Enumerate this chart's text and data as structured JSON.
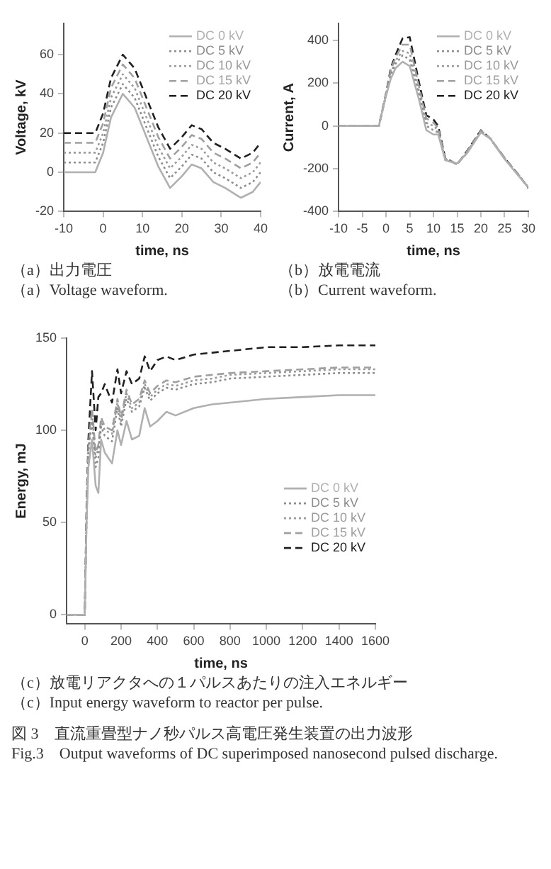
{
  "chart_data": [
    {
      "type": "line",
      "xlabel": "time, ns",
      "ylabel": "Voltage, kV",
      "xlim": [
        -10,
        40
      ],
      "xticks": [
        -10,
        0,
        10,
        20,
        30,
        40
      ],
      "ylim": [
        -20,
        76
      ],
      "yticks": [
        -20,
        0,
        20,
        40,
        60
      ],
      "grid": false,
      "legend": "top right",
      "marker": "none",
      "x": [
        -10,
        -2,
        0,
        2,
        5,
        8,
        11,
        14,
        17,
        20,
        22.5,
        25,
        28,
        31,
        35,
        38,
        40
      ],
      "series": [
        {
          "name": "DC 0 kV",
          "color": "#b0b0b0",
          "line_style": "solid",
          "values": [
            0,
            0,
            10,
            28,
            40,
            33,
            18,
            3,
            -8,
            -2,
            4,
            2,
            -5,
            -8,
            -13,
            -10,
            -5
          ]
        },
        {
          "name": "DC 5 kV",
          "color": "#8c8c8c",
          "line_style": "dotted",
          "values": [
            5,
            5,
            15,
            33,
            45,
            38,
            23,
            8,
            -3,
            3,
            9,
            7,
            0,
            -3,
            -8,
            -5,
            0
          ]
        },
        {
          "name": "DC 10 kV",
          "color": "#9a9a9a",
          "line_style": "dotted",
          "values": [
            10,
            10,
            20,
            38,
            50,
            43,
            28,
            13,
            2,
            8,
            14,
            12,
            5,
            2,
            -3,
            0,
            5
          ]
        },
        {
          "name": "DC 15 kV",
          "color": "#a0a0a0",
          "line_style": "dashed",
          "values": [
            15,
            15,
            25,
            43,
            55,
            48,
            33,
            18,
            7,
            13,
            19,
            17,
            10,
            7,
            2,
            5,
            10
          ]
        },
        {
          "name": "DC 20 kV",
          "color": "#202020",
          "line_style": "dashed",
          "values": [
            20,
            20,
            30,
            48,
            60,
            53,
            38,
            23,
            12,
            18,
            24,
            22,
            15,
            12,
            7,
            10,
            15
          ]
        }
      ],
      "annotations": [
        "（a）出力電圧",
        "（a）Voltage waveform."
      ]
    },
    {
      "type": "line",
      "xlabel": "time, ns",
      "ylabel": "Current, A",
      "xlim": [
        -10,
        30
      ],
      "xticks": [
        -10,
        -5,
        0,
        5,
        10,
        15,
        20,
        25,
        30
      ],
      "ylim": [
        -400,
        480
      ],
      "yticks": [
        -400,
        -200,
        0,
        200,
        400
      ],
      "grid": false,
      "legend": "top right",
      "marker": "none",
      "x": [
        -10,
        -1.5,
        0,
        1,
        2,
        3.5,
        5,
        7,
        8.5,
        10,
        11,
        12.5,
        15,
        17,
        20,
        22,
        25,
        28,
        30
      ],
      "series": [
        {
          "name": "DC 0 kV",
          "color": "#b0b0b0",
          "line_style": "solid",
          "values": [
            0,
            0,
            140,
            220,
            270,
            300,
            280,
            120,
            -20,
            -40,
            -40,
            -160,
            -175,
            -130,
            -30,
            -60,
            -155,
            -235,
            -285
          ]
        },
        {
          "name": "DC 5 kV",
          "color": "#8c8c8c",
          "line_style": "dotted",
          "values": [
            0,
            0,
            145,
            235,
            290,
            330,
            310,
            140,
            0,
            -20,
            -30,
            -160,
            -178,
            -128,
            -28,
            -60,
            -153,
            -233,
            -287
          ]
        },
        {
          "name": "DC 10 kV",
          "color": "#9a9a9a",
          "line_style": "dotted",
          "values": [
            0,
            0,
            145,
            245,
            305,
            350,
            340,
            160,
            15,
            0,
            -20,
            -155,
            -178,
            -125,
            -25,
            -58,
            -152,
            -232,
            -288
          ]
        },
        {
          "name": "DC 15 kV",
          "color": "#a0a0a0",
          "line_style": "dashed",
          "values": [
            0,
            0,
            148,
            260,
            320,
            380,
            380,
            180,
            35,
            15,
            -10,
            -152,
            -180,
            -122,
            -22,
            -58,
            -150,
            -230,
            -289
          ]
        },
        {
          "name": "DC 20 kV",
          "color": "#202020",
          "line_style": "dashed",
          "values": [
            0,
            0,
            150,
            270,
            330,
            410,
            415,
            200,
            50,
            30,
            0,
            -150,
            -180,
            -120,
            -20,
            -60,
            -150,
            -230,
            -290
          ]
        }
      ],
      "annotations": [
        "（b）放電電流",
        "（b）Current waveform."
      ]
    },
    {
      "type": "line",
      "xlabel": "time, ns",
      "ylabel": "Energy, mJ",
      "xlim": [
        -100,
        1600
      ],
      "xticks": [
        0,
        200,
        400,
        600,
        800,
        1000,
        1200,
        1400,
        1600
      ],
      "ylim": [
        -5,
        150
      ],
      "yticks": [
        0,
        50,
        100,
        150
      ],
      "grid": false,
      "legend": "right",
      "marker": "none",
      "x": [
        -100,
        0,
        10,
        20,
        40,
        60,
        75,
        90,
        110,
        150,
        180,
        200,
        230,
        260,
        300,
        330,
        360,
        400,
        450,
        500,
        600,
        700,
        800,
        1000,
        1200,
        1400,
        1600
      ],
      "series": [
        {
          "name": "DC 0 kV",
          "color": "#b0b0b0",
          "line_style": "solid",
          "values": [
            0,
            0,
            50,
            80,
            95,
            70,
            66,
            95,
            88,
            82,
            100,
            92,
            105,
            95,
            97,
            112,
            102,
            105,
            110,
            108,
            112,
            114,
            115,
            117,
            118,
            119,
            119
          ]
        },
        {
          "name": "DC 5 kV",
          "color": "#8c8c8c",
          "line_style": "dotted",
          "values": [
            0,
            0,
            53,
            88,
            105,
            80,
            85,
            102,
            97,
            94,
            112,
            102,
            117,
            110,
            113,
            123,
            116,
            120,
            123,
            122,
            125,
            126,
            128,
            129,
            130,
            131,
            131
          ]
        },
        {
          "name": "DC 10 kV",
          "color": "#9a9a9a",
          "line_style": "dotted",
          "values": [
            0,
            0,
            55,
            90,
            110,
            85,
            90,
            105,
            100,
            98,
            115,
            105,
            120,
            112,
            115,
            125,
            118,
            122,
            125,
            124,
            127,
            128,
            130,
            131,
            132,
            133,
            133
          ]
        },
        {
          "name": "DC 15 kV",
          "color": "#a0a0a0",
          "line_style": "dashed",
          "values": [
            0,
            0,
            56,
            91,
            112,
            88,
            92,
            107,
            102,
            100,
            117,
            107,
            122,
            114,
            117,
            127,
            120,
            124,
            127,
            126,
            129,
            130,
            131,
            132,
            133,
            134,
            134
          ]
        },
        {
          "name": "DC 20 kV",
          "color": "#202020",
          "line_style": "dashed",
          "values": [
            0,
            0,
            60,
            95,
            132,
            100,
            118,
            120,
            125,
            115,
            133,
            120,
            132,
            125,
            128,
            140,
            132,
            138,
            140,
            138,
            141,
            142,
            143,
            145,
            145,
            146,
            146
          ]
        }
      ],
      "annotations": [
        "（c）放電リアクタへの１パルスあたりの注入エネルギー",
        "（c）Input energy waveform to reactor per pulse.",
        "図 3　直流重畳型ナノ秒パルス高電圧発生装置の出力波形",
        "Fig.3　Output waveforms of DC superimposed nanosecond pulsed discharge."
      ]
    }
  ]
}
